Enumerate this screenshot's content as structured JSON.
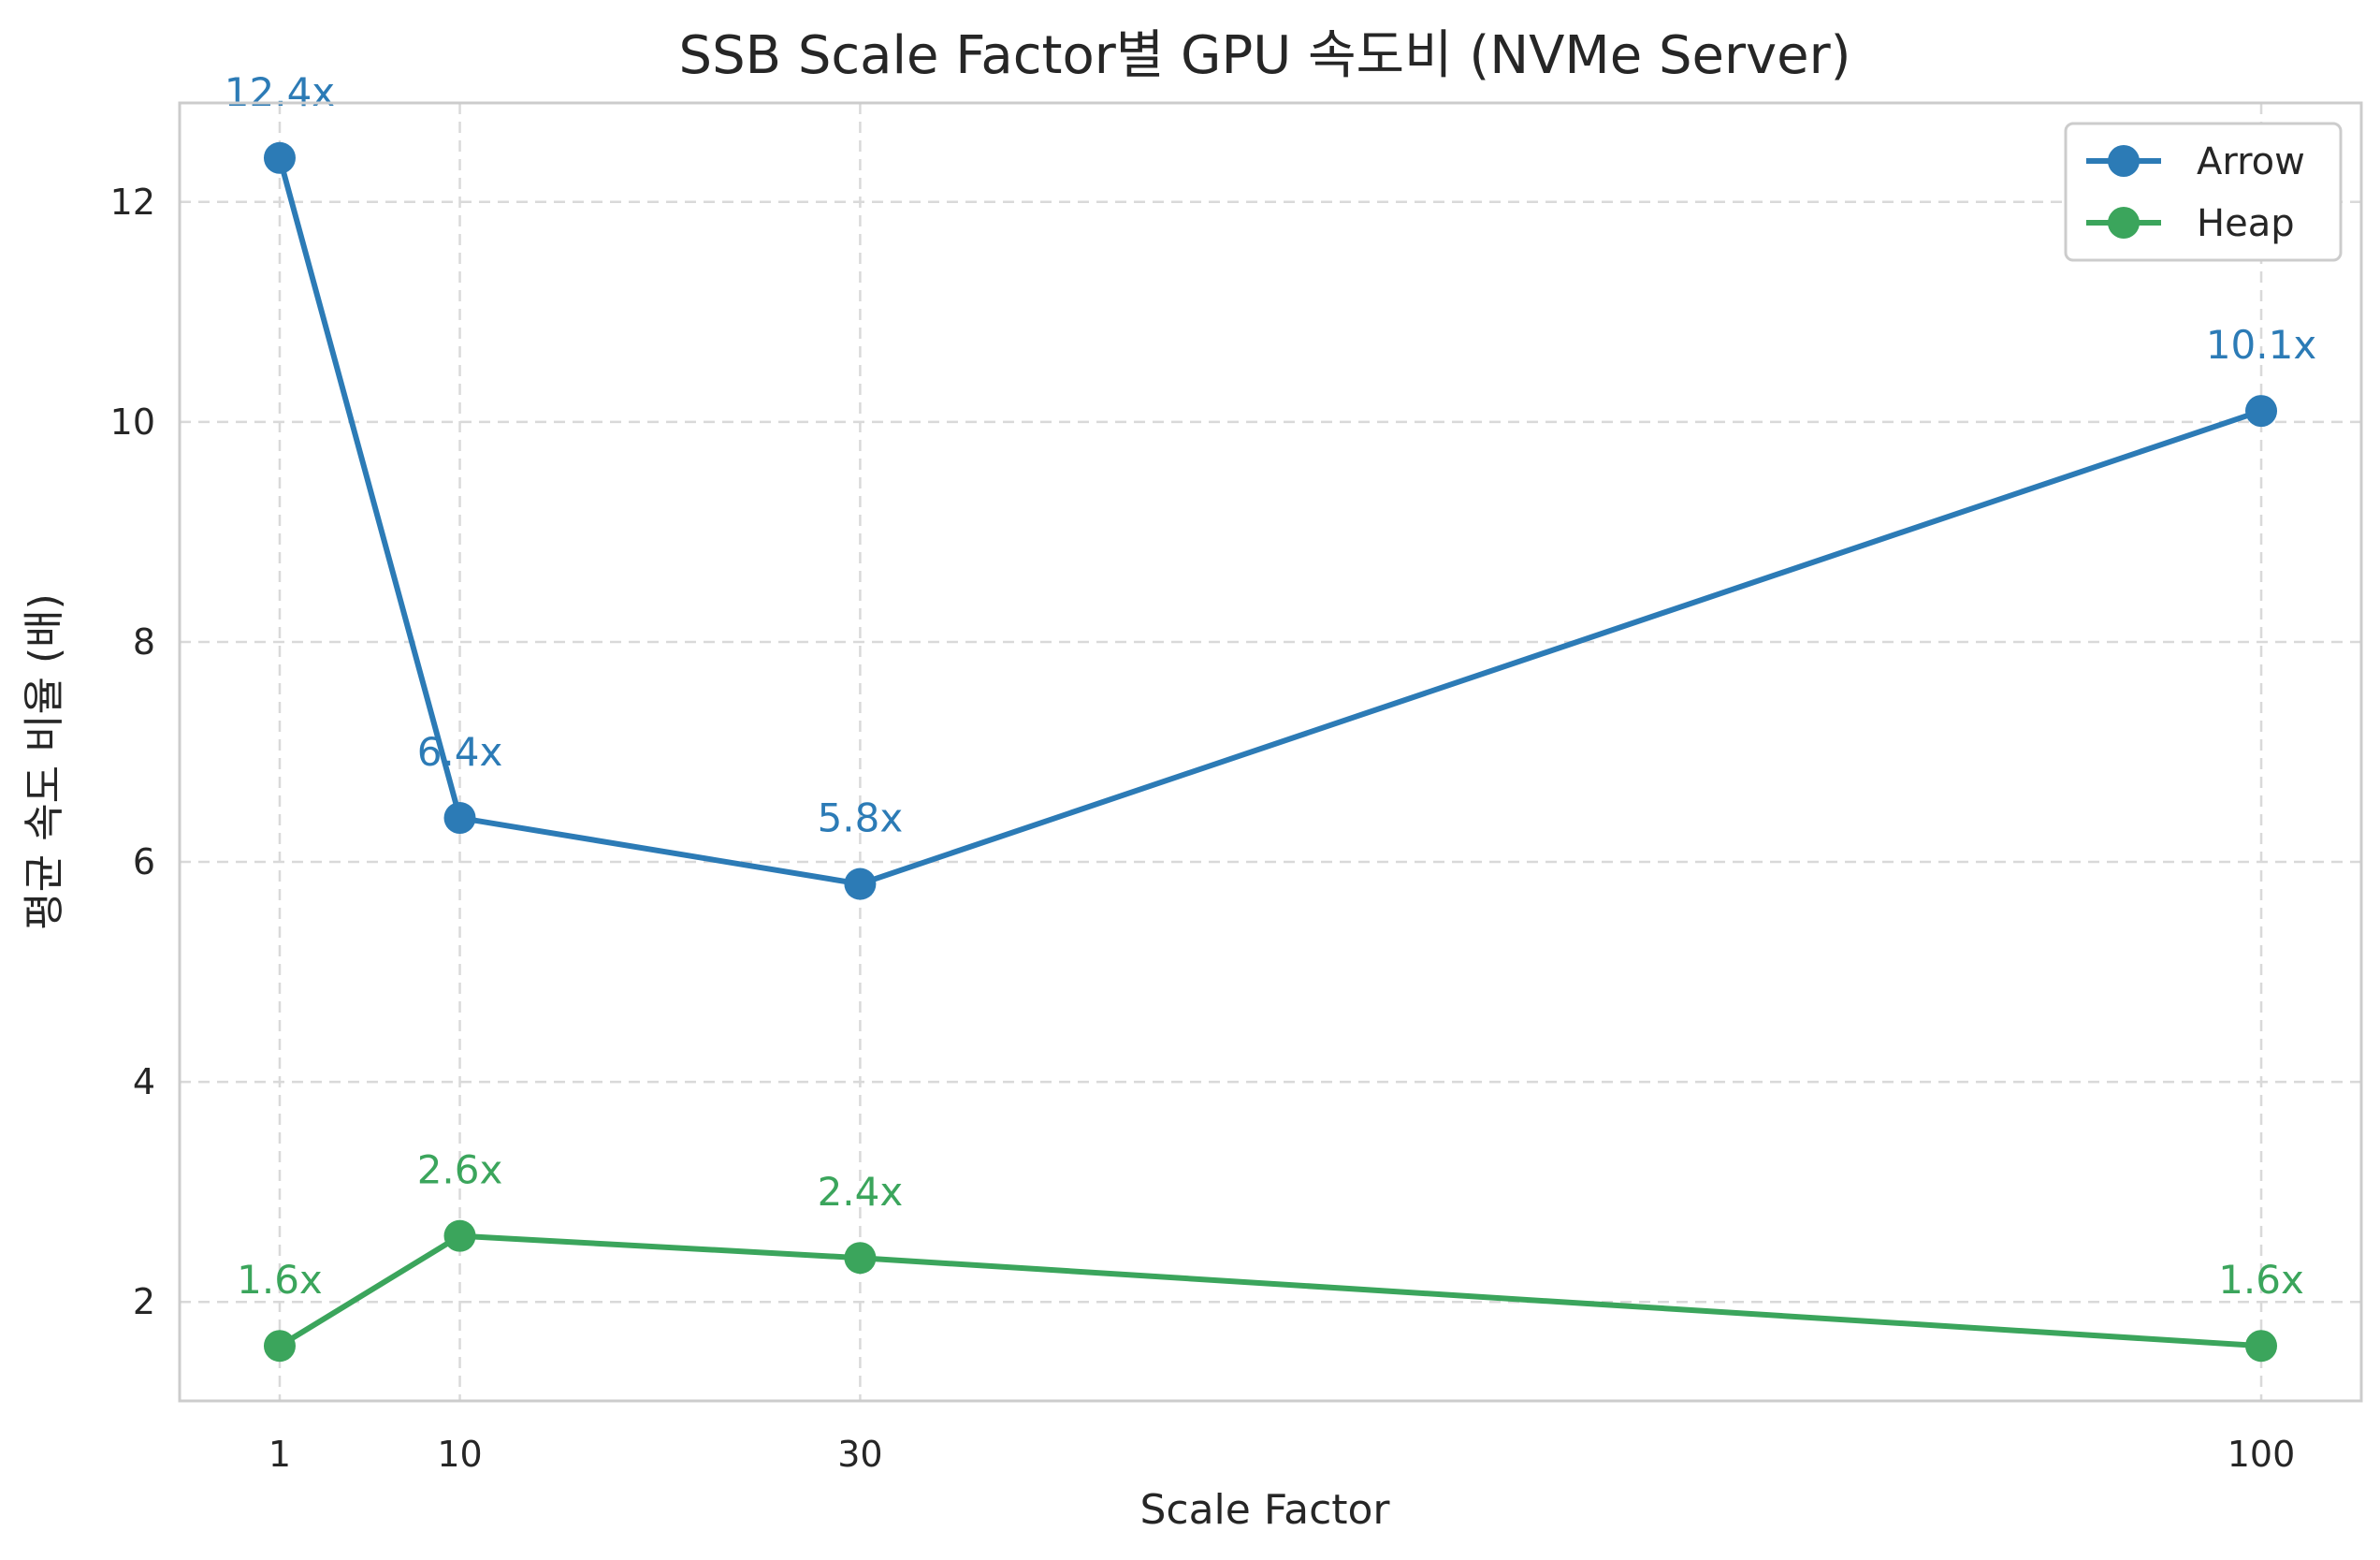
{
  "chart_data": {
    "type": "line",
    "title": "SSB Scale Factor별 GPU 속도비 (NVMe Server)",
    "xlabel": "Scale Factor",
    "ylabel": "평균 속도 비율 (배)",
    "x": [
      1,
      10,
      30,
      100
    ],
    "x_tick_labels": [
      "1",
      "10",
      "30",
      "100"
    ],
    "xlim": [
      -4,
      105
    ],
    "ylim": [
      1.1,
      12.9
    ],
    "y_ticks": [
      2,
      4,
      6,
      8,
      10,
      12
    ],
    "y_tick_labels": [
      "2",
      "4",
      "6",
      "8",
      "10",
      "12"
    ],
    "grid": true,
    "legend_position": "top-right",
    "series": [
      {
        "name": "Arrow",
        "color": "#2c7bb6",
        "values": [
          12.4,
          6.4,
          5.8,
          10.1
        ],
        "labels": [
          "12.4x",
          "6.4x",
          "5.8x",
          "10.1x"
        ]
      },
      {
        "name": "Heap",
        "color": "#3ba55c",
        "values": [
          1.6,
          2.6,
          2.4,
          1.6
        ],
        "labels": [
          "1.6x",
          "2.6x",
          "2.4x",
          "1.6x"
        ]
      }
    ]
  }
}
